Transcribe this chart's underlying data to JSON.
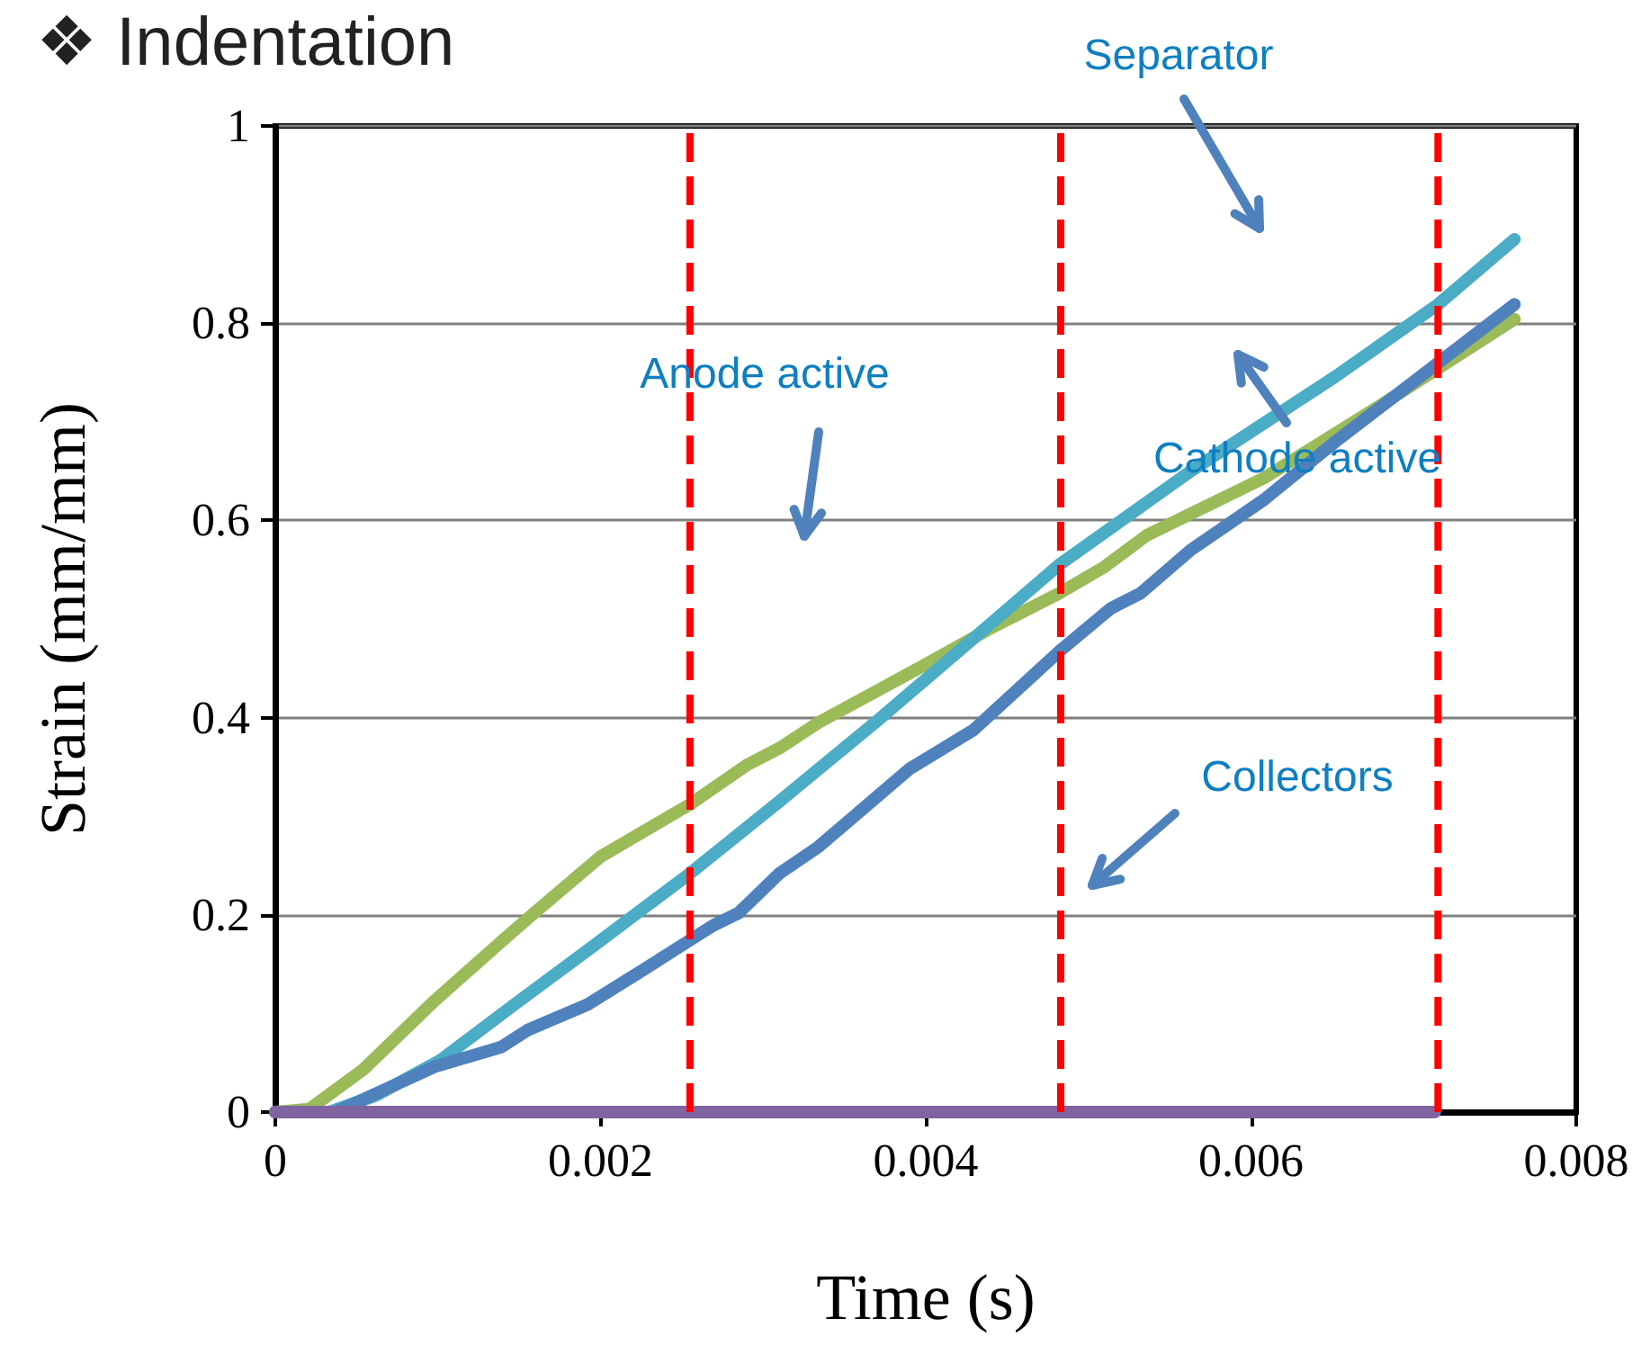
{
  "chart_data": {
    "type": "line",
    "title": "❖ Indentation",
    "xlabel": "Time (s)",
    "ylabel": "Strain (mm/mm)",
    "xlim": [
      0,
      0.008
    ],
    "xticks": [
      0,
      0.002,
      0.004,
      0.006,
      0.008
    ],
    "ylim": [
      0,
      1
    ],
    "yticks": [
      0,
      0.2,
      0.4,
      0.6,
      0.8,
      1
    ],
    "grid": "y",
    "marker": "none",
    "line_style": "solid",
    "series": [
      {
        "color": "#9bbb59",
        "x": [
          0,
          0.00021,
          0.00054,
          0.00098,
          0.00139,
          0.0016,
          0.002,
          0.00255,
          0.0029,
          0.0031,
          0.00334,
          0.0039,
          0.00438,
          0.00482,
          0.00509,
          0.00536,
          0.00608,
          0.00679,
          0.00762
        ],
        "values": [
          0,
          0.003,
          0.043,
          0.113,
          0.173,
          0.203,
          0.259,
          0.312,
          0.352,
          0.369,
          0.395,
          0.445,
          0.489,
          0.526,
          0.552,
          0.585,
          0.643,
          0.716,
          0.804
        ]
      },
      {
        "color": "#4bacc6",
        "x": [
          0,
          0.00033,
          0.00062,
          0.00102,
          0.00147,
          0.00196,
          0.00255,
          0.0031,
          0.00371,
          0.00432,
          0.00482,
          0.00563,
          0.00652,
          0.00715,
          0.00762
        ],
        "values": [
          0,
          0,
          0.017,
          0.053,
          0.109,
          0.169,
          0.242,
          0.315,
          0.398,
          0.484,
          0.555,
          0.65,
          0.746,
          0.819,
          0.885
        ]
      },
      {
        "color": "#4f81bd",
        "x": [
          0,
          0.00037,
          0.00098,
          0.00139,
          0.00155,
          0.00192,
          0.00228,
          0.00269,
          0.00285,
          0.0031,
          0.00334,
          0.0039,
          0.00429,
          0.00482,
          0.00514,
          0.00532,
          0.00563,
          0.00608,
          0.00652,
          0.00762
        ],
        "values": [
          0,
          0,
          0.046,
          0.066,
          0.083,
          0.109,
          0.146,
          0.189,
          0.202,
          0.242,
          0.269,
          0.348,
          0.387,
          0.467,
          0.511,
          0.526,
          0.57,
          0.621,
          0.68,
          0.819
        ]
      },
      {
        "color": "#8064a2",
        "x": [
          0,
          0.00713
        ],
        "values": [
          0,
          0
        ]
      }
    ],
    "ref_lines": [
      {
        "axis": "x",
        "value": 0.00255,
        "color": "#ff0000",
        "line_style": "dashed"
      },
      {
        "axis": "x",
        "value": 0.00483,
        "color": "#ff0000",
        "line_style": "dashed"
      },
      {
        "axis": "x",
        "value": 0.00715,
        "color": "#ff0000",
        "line_style": "dashed"
      }
    ],
    "annotations": [
      "Anode active",
      "Separator",
      "Cathode active",
      "Collectors"
    ]
  }
}
